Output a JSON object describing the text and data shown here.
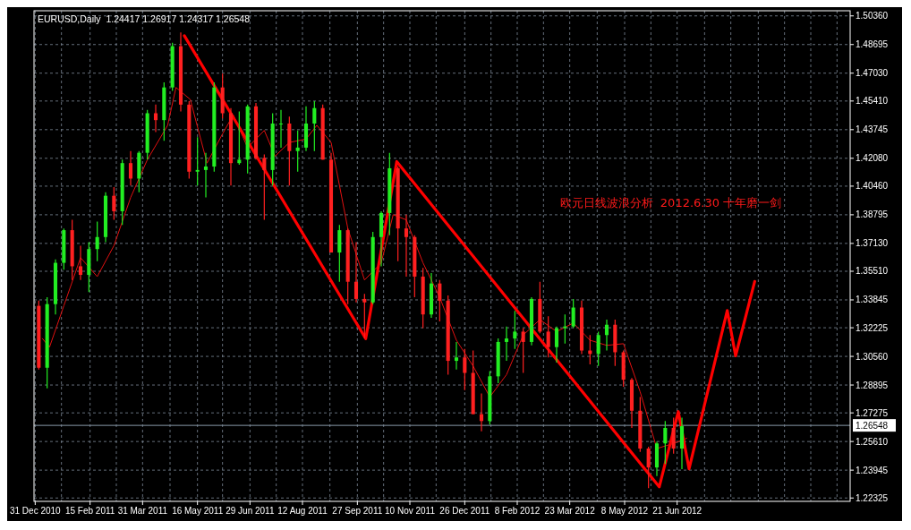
{
  "chart_data": {
    "type": "candlestick",
    "title": "EURUSD,Daily  1.24417 1.26917 1.24317 1.26548",
    "annotations": [
      "欧元日线波浪分析  2012.6.30 十年磨一剑"
    ],
    "xlim": [
      "2010-12-30",
      "2012-11-13"
    ],
    "xticks": [
      {
        "value": "2010-12-31",
        "label": "31 Dec 2010"
      },
      {
        "value": "2011-01-22",
        "label": null
      },
      {
        "value": "2011-02-15",
        "label": "15 Feb 2011"
      },
      {
        "value": "2011-03-09",
        "label": null
      },
      {
        "value": "2011-03-31",
        "label": "31 Mar 2011"
      },
      {
        "value": "2011-04-23",
        "label": null
      },
      {
        "value": "2011-05-16",
        "label": "16 May 2011"
      },
      {
        "value": "2011-06-06",
        "label": null
      },
      {
        "value": "2011-06-29",
        "label": "29 Jun 2011"
      },
      {
        "value": "2011-07-21",
        "label": null
      },
      {
        "value": "2011-08-12",
        "label": "12 Aug 2011"
      },
      {
        "value": "2011-09-04",
        "label": null
      },
      {
        "value": "2011-09-27",
        "label": "27 Sep 2011"
      },
      {
        "value": "2011-10-19",
        "label": null
      },
      {
        "value": "2011-11-10",
        "label": "10 Nov 2011"
      },
      {
        "value": "2011-12-02",
        "label": null
      },
      {
        "value": "2011-12-26",
        "label": "26 Dec 2011"
      },
      {
        "value": "2012-01-17",
        "label": null
      },
      {
        "value": "2012-02-08",
        "label": "8 Feb 2012"
      },
      {
        "value": "2012-03-01",
        "label": null
      },
      {
        "value": "2012-03-23",
        "label": "23 Mar 2012"
      },
      {
        "value": "2012-04-15",
        "label": null
      },
      {
        "value": "2012-05-08",
        "label": "8 May 2012"
      },
      {
        "value": "2012-05-30",
        "label": null
      },
      {
        "value": "2012-06-21",
        "label": "21 Jun 2012"
      },
      {
        "value": "2012-07-14",
        "label": null
      },
      {
        "value": "2012-08-05",
        "label": null
      },
      {
        "value": "2012-08-28",
        "label": null
      },
      {
        "value": "2012-09-19",
        "label": null
      },
      {
        "value": "2012-10-11",
        "label": null
      },
      {
        "value": "2012-11-02",
        "label": null
      }
    ],
    "ylim": [
      1.2213,
      1.5066
    ],
    "yticks": [
      {
        "value": 1.5036,
        "label": "1.50360"
      },
      {
        "value": 1.48695,
        "label": "1.48695"
      },
      {
        "value": 1.4703,
        "label": "1.47030"
      },
      {
        "value": 1.4541,
        "label": "1.45410"
      },
      {
        "value": 1.43745,
        "label": "1.43745"
      },
      {
        "value": 1.4208,
        "label": "1.42080"
      },
      {
        "value": 1.4046,
        "label": "1.40460"
      },
      {
        "value": 1.38795,
        "label": "1.38795"
      },
      {
        "value": 1.3713,
        "label": "1.37130"
      },
      {
        "value": 1.3551,
        "label": "1.35510"
      },
      {
        "value": 1.33845,
        "label": "1.33845"
      },
      {
        "value": 1.32225,
        "label": "1.32225"
      },
      {
        "value": 1.3056,
        "label": "1.30560"
      },
      {
        "value": 1.28895,
        "label": "1.28895"
      },
      {
        "value": 1.27275,
        "label": "1.27275"
      },
      {
        "value": 1.2561,
        "label": "1.25610"
      },
      {
        "value": 1.23945,
        "label": "1.23945"
      },
      {
        "value": 1.22325,
        "label": "1.22325"
      }
    ],
    "grid": true,
    "ref_lines": [
      {
        "axis": "y",
        "value": 1.26548,
        "label": "1.26548",
        "color": "#8899aa"
      }
    ],
    "series": [
      {
        "x": [
          "2011-01-03",
          "2011-01-10",
          "2011-01-17",
          "2011-01-24",
          "2011-01-31",
          "2011-02-07",
          "2011-02-14",
          "2011-02-21",
          "2011-02-28",
          "2011-03-07",
          "2011-03-14",
          "2011-03-21",
          "2011-03-28",
          "2011-04-04",
          "2011-04-11",
          "2011-04-18",
          "2011-04-25",
          "2011-05-02",
          "2011-05-09",
          "2011-05-16",
          "2011-05-23",
          "2011-05-30",
          "2011-06-06",
          "2011-06-13",
          "2011-06-20",
          "2011-06-27",
          "2011-07-04",
          "2011-07-11",
          "2011-07-18",
          "2011-07-25",
          "2011-08-01",
          "2011-08-08",
          "2011-08-15",
          "2011-08-22",
          "2011-08-29",
          "2011-09-05",
          "2011-09-12",
          "2011-09-19",
          "2011-09-26",
          "2011-10-03",
          "2011-10-10",
          "2011-10-17",
          "2011-10-24",
          "2011-10-31",
          "2011-11-07",
          "2011-11-14",
          "2011-11-21",
          "2011-11-28",
          "2011-12-05",
          "2011-12-12",
          "2011-12-19",
          "2011-12-26",
          "2012-01-02",
          "2012-01-09",
          "2012-01-16",
          "2012-01-23",
          "2012-01-30",
          "2012-02-06",
          "2012-02-13",
          "2012-02-20",
          "2012-02-27",
          "2012-03-05",
          "2012-03-12",
          "2012-03-19",
          "2012-03-26",
          "2012-04-02",
          "2012-04-09",
          "2012-04-16",
          "2012-04-23",
          "2012-04-30",
          "2012-05-07",
          "2012-05-14",
          "2012-05-21",
          "2012-05-28",
          "2012-06-04",
          "2012-06-11",
          "2012-06-18",
          "2012-06-25"
        ],
        "ohlc": [
          [
            1.335,
            1.338,
            1.298,
            1.299
          ],
          [
            1.299,
            1.34,
            1.287,
            1.336
          ],
          [
            1.336,
            1.362,
            1.33,
            1.36
          ],
          [
            1.36,
            1.38,
            1.356,
            1.379
          ],
          [
            1.379,
            1.385,
            1.35,
            1.358
          ],
          [
            1.358,
            1.37,
            1.35,
            1.353
          ],
          [
            1.353,
            1.372,
            1.343,
            1.368
          ],
          [
            1.368,
            1.384,
            1.361,
            1.375
          ],
          [
            1.375,
            1.401,
            1.372,
            1.399
          ],
          [
            1.399,
            1.404,
            1.385,
            1.39
          ],
          [
            1.39,
            1.42,
            1.382,
            1.418
          ],
          [
            1.418,
            1.425,
            1.405,
            1.409
          ],
          [
            1.409,
            1.425,
            1.401,
            1.424
          ],
          [
            1.424,
            1.449,
            1.42,
            1.447
          ],
          [
            1.447,
            1.452,
            1.436,
            1.443
          ],
          [
            1.443,
            1.465,
            1.431,
            1.462
          ],
          [
            1.462,
            1.488,
            1.46,
            1.486
          ],
          [
            1.486,
            1.494,
            1.448,
            1.452
          ],
          [
            1.452,
            1.454,
            1.409,
            1.413
          ],
          [
            1.413,
            1.433,
            1.405,
            1.414
          ],
          [
            1.414,
            1.424,
            1.398,
            1.416
          ],
          [
            1.416,
            1.465,
            1.413,
            1.462
          ],
          [
            1.462,
            1.47,
            1.444,
            1.447
          ],
          [
            1.447,
            1.45,
            1.405,
            1.418
          ],
          [
            1.418,
            1.448,
            1.417,
            1.42
          ],
          [
            1.42,
            1.452,
            1.412,
            1.451
          ],
          [
            1.451,
            1.453,
            1.42,
            1.421
          ],
          [
            1.421,
            1.423,
            1.385,
            1.414
          ],
          [
            1.414,
            1.447,
            1.405,
            1.441
          ],
          [
            1.441,
            1.449,
            1.427,
            1.441
          ],
          [
            1.441,
            1.445,
            1.405,
            1.425
          ],
          [
            1.425,
            1.437,
            1.413,
            1.427
          ],
          [
            1.427,
            1.451,
            1.425,
            1.441
          ],
          [
            1.441,
            1.454,
            1.425,
            1.45
          ],
          [
            1.45,
            1.452,
            1.42,
            1.42
          ],
          [
            1.42,
            1.424,
            1.366,
            1.366
          ],
          [
            1.366,
            1.382,
            1.349,
            1.379
          ],
          [
            1.379,
            1.38,
            1.336,
            1.349
          ],
          [
            1.349,
            1.372,
            1.337,
            1.339
          ],
          [
            1.339,
            1.342,
            1.316,
            1.337
          ],
          [
            1.337,
            1.378,
            1.336,
            1.375
          ],
          [
            1.375,
            1.39,
            1.358,
            1.389
          ],
          [
            1.389,
            1.424,
            1.376,
            1.415
          ],
          [
            1.415,
            1.416,
            1.361,
            1.38
          ],
          [
            1.38,
            1.388,
            1.352,
            1.375
          ],
          [
            1.375,
            1.376,
            1.34,
            1.352
          ],
          [
            1.352,
            1.357,
            1.322,
            1.33
          ],
          [
            1.33,
            1.354,
            1.328,
            1.348
          ],
          [
            1.348,
            1.35,
            1.326,
            1.338
          ],
          [
            1.338,
            1.341,
            1.295,
            1.303
          ],
          [
            1.303,
            1.314,
            1.298,
            1.305
          ],
          [
            1.305,
            1.31,
            1.286,
            1.296
          ],
          [
            1.296,
            1.309,
            1.272,
            1.272
          ],
          [
            1.272,
            1.284,
            1.262,
            1.268
          ],
          [
            1.268,
            1.297,
            1.266,
            1.294
          ],
          [
            1.294,
            1.316,
            1.29,
            1.314
          ],
          [
            1.314,
            1.323,
            1.303,
            1.316
          ],
          [
            1.316,
            1.332,
            1.31,
            1.32
          ],
          [
            1.32,
            1.322,
            1.296,
            1.314
          ],
          [
            1.314,
            1.34,
            1.312,
            1.339
          ],
          [
            1.339,
            1.349,
            1.319,
            1.32
          ],
          [
            1.32,
            1.329,
            1.305,
            1.311
          ],
          [
            1.311,
            1.323,
            1.302,
            1.322
          ],
          [
            1.322,
            1.33,
            1.313,
            1.323
          ],
          [
            1.323,
            1.339,
            1.322,
            1.334
          ],
          [
            1.334,
            1.338,
            1.307,
            1.309
          ],
          [
            1.309,
            1.318,
            1.301,
            1.307
          ],
          [
            1.307,
            1.32,
            1.3,
            1.318
          ],
          [
            1.318,
            1.327,
            1.309,
            1.324
          ],
          [
            1.324,
            1.327,
            1.3,
            1.308
          ],
          [
            1.308,
            1.309,
            1.288,
            1.292
          ],
          [
            1.292,
            1.293,
            1.264,
            1.274
          ],
          [
            1.274,
            1.282,
            1.25,
            1.252
          ],
          [
            1.252,
            1.253,
            1.229,
            1.241
          ],
          [
            1.241,
            1.256,
            1.236,
            1.255
          ],
          [
            1.255,
            1.268,
            1.243,
            1.264
          ],
          [
            1.264,
            1.27,
            1.249,
            1.252
          ],
          [
            1.252,
            1.27,
            1.24,
            1.265
          ]
        ],
        "colors": [
          "#ff2020",
          "#22ee22",
          "#22ee22",
          "#22ee22",
          "#ff2020",
          "#ff2020",
          "#22ee22",
          "#22ee22",
          "#22ee22",
          "#ff2020",
          "#22ee22",
          "#ff2020",
          "#22ee22",
          "#22ee22",
          "#ff2020",
          "#22ee22",
          "#22ee22",
          "#ff2020",
          "#ff2020",
          "#22ee22",
          "#22ee22",
          "#22ee22",
          "#ff2020",
          "#ff2020",
          "#22ee22",
          "#22ee22",
          "#ff2020",
          "#ff2020",
          "#22ee22",
          "#22ee22",
          "#ff2020",
          "#22ee22",
          "#22ee22",
          "#22ee22",
          "#ff2020",
          "#ff2020",
          "#22ee22",
          "#ff2020",
          "#ff2020",
          "#ff2020",
          "#22ee22",
          "#22ee22",
          "#22ee22",
          "#ff2020",
          "#ff2020",
          "#ff2020",
          "#ff2020",
          "#22ee22",
          "#ff2020",
          "#ff2020",
          "#22ee22",
          "#ff2020",
          "#ff2020",
          "#ff2020",
          "#22ee22",
          "#22ee22",
          "#22ee22",
          "#22ee22",
          "#ff2020",
          "#22ee22",
          "#ff2020",
          "#ff2020",
          "#22ee22",
          "#22ee22",
          "#22ee22",
          "#ff2020",
          "#ff2020",
          "#22ee22",
          "#22ee22",
          "#ff2020",
          "#ff2020",
          "#ff2020",
          "#ff2020",
          "#ff2020",
          "#22ee22",
          "#22ee22",
          "#ff2020",
          "#22ee22"
        ]
      },
      {
        "type": "line",
        "color": "#e01010",
        "x": [
          "2011-01-06",
          "2011-01-12",
          "2011-01-24",
          "2011-02-07",
          "2011-02-21",
          "2011-03-07",
          "2011-03-21",
          "2011-04-04",
          "2011-04-21",
          "2011-04-28",
          "2011-05-10",
          "2011-05-24",
          "2011-06-06",
          "2011-06-15",
          "2011-06-27",
          "2011-07-11",
          "2011-07-20",
          "2011-08-01",
          "2011-08-15",
          "2011-08-24",
          "2011-09-05",
          "2011-09-19",
          "2011-10-03",
          "2011-10-17",
          "2011-10-27",
          "2011-11-07",
          "2011-11-21",
          "2011-12-05",
          "2011-12-19",
          "2012-01-02",
          "2012-01-16",
          "2012-01-30",
          "2012-02-13",
          "2012-02-27",
          "2012-03-12",
          "2012-03-26",
          "2012-04-09",
          "2012-04-23",
          "2012-05-07",
          "2012-05-21",
          "2012-06-04",
          "2012-06-18",
          "2012-06-29"
        ],
        "values": [
          1.316,
          1.311,
          1.335,
          1.363,
          1.352,
          1.37,
          1.398,
          1.42,
          1.44,
          1.462,
          1.455,
          1.418,
          1.435,
          1.446,
          1.427,
          1.437,
          1.422,
          1.43,
          1.432,
          1.44,
          1.43,
          1.38,
          1.35,
          1.36,
          1.388,
          1.385,
          1.36,
          1.34,
          1.315,
          1.3,
          1.282,
          1.295,
          1.318,
          1.327,
          1.32,
          1.325,
          1.315,
          1.312,
          1.313,
          1.285,
          1.252,
          1.255,
          1.258
        ]
      },
      {
        "type": "line",
        "color": "#ff0000",
        "x": [
          "2011-05-05",
          "2011-10-04",
          "2011-10-30",
          "2012-06-06",
          "2012-06-22",
          "2012-07-01",
          "2012-08-02",
          "2012-08-09",
          "2012-08-25"
        ],
        "values": [
          1.4921,
          1.3159,
          1.4189,
          1.2297,
          1.2735,
          1.2402,
          1.3323,
          1.3059,
          1.3492
        ]
      }
    ]
  }
}
